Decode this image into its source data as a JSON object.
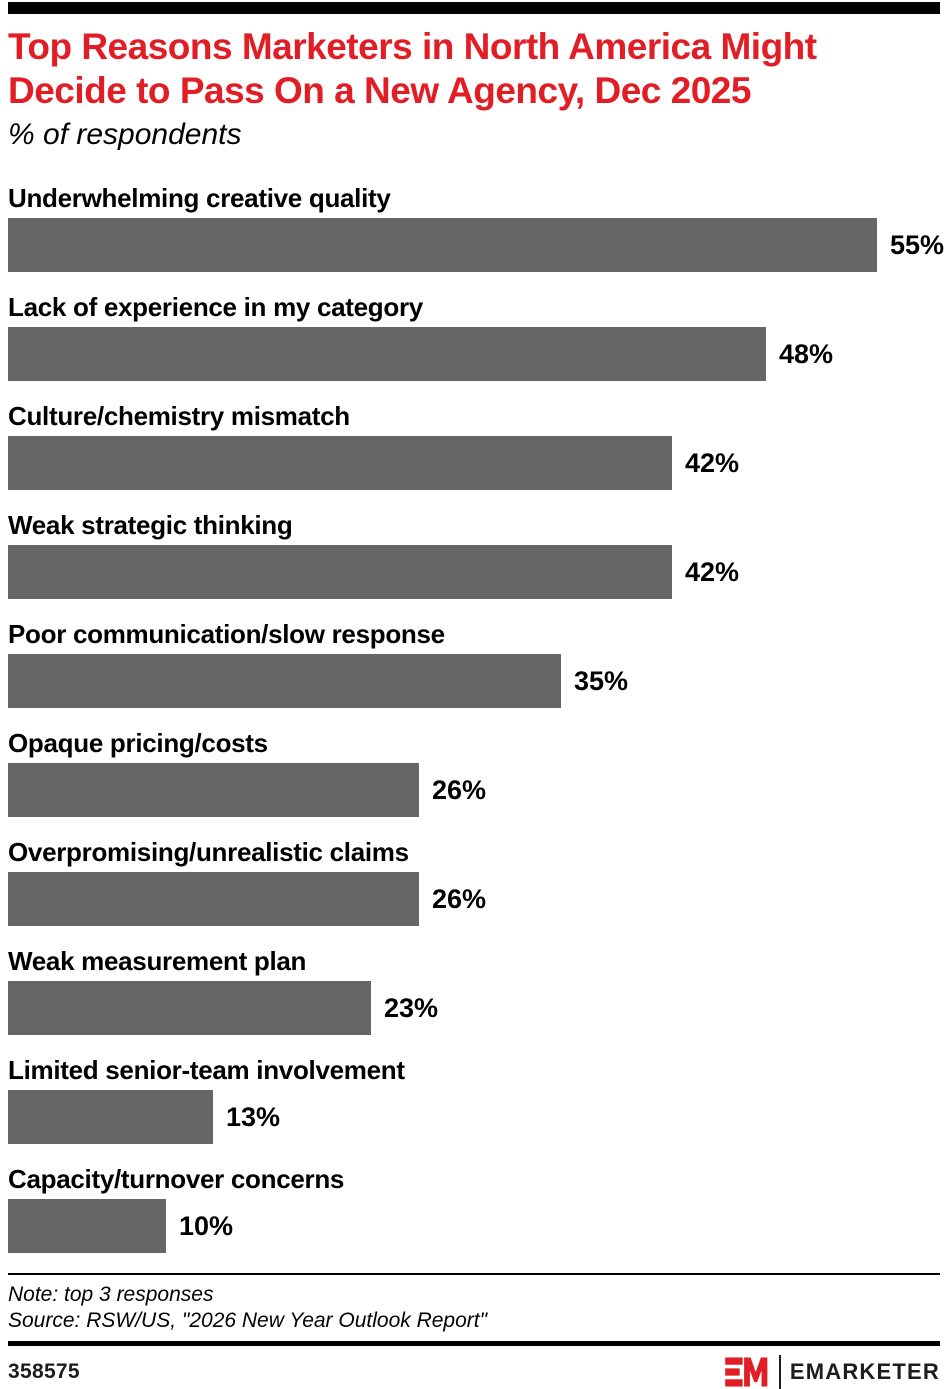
{
  "header": {
    "title": "Top Reasons Marketers in North America Might Decide to Pass On a New Agency, Dec 2025",
    "subtitle": "% of respondents"
  },
  "chart_data": {
    "type": "bar",
    "orientation": "horizontal",
    "title": "Top Reasons Marketers in North America Might Decide to Pass On a New Agency, Dec 2025",
    "subtitle": "% of respondents",
    "xlabel": "",
    "ylabel": "",
    "xlim": [
      0,
      59
    ],
    "grid": false,
    "legend": false,
    "categories": [
      "Underwhelming creative quality",
      "Lack of experience in my category",
      "Culture/chemistry mismatch",
      "Weak strategic thinking",
      "Poor communication/slow response",
      "Opaque pricing/costs",
      "Overpromising/unrealistic claims",
      "Weak measurement plan",
      "Limited senior-team involvement",
      "Capacity/turnover concerns"
    ],
    "values": [
      55,
      48,
      42,
      42,
      35,
      26,
      26,
      23,
      13,
      10
    ],
    "value_labels": [
      "55%",
      "48%",
      "42%",
      "42%",
      "35%",
      "26%",
      "26%",
      "23%",
      "13%",
      "10%"
    ]
  },
  "footer": {
    "note": "Note: top 3 responses",
    "source": "Source: RSW/US, \"2026 New Year Outlook Report\"",
    "chart_id": "358575",
    "brand_wordmark": "EMARKETER"
  },
  "colors": {
    "accent_red": "#e11e26",
    "bar_gray": "#666666",
    "text_black": "#000000"
  }
}
